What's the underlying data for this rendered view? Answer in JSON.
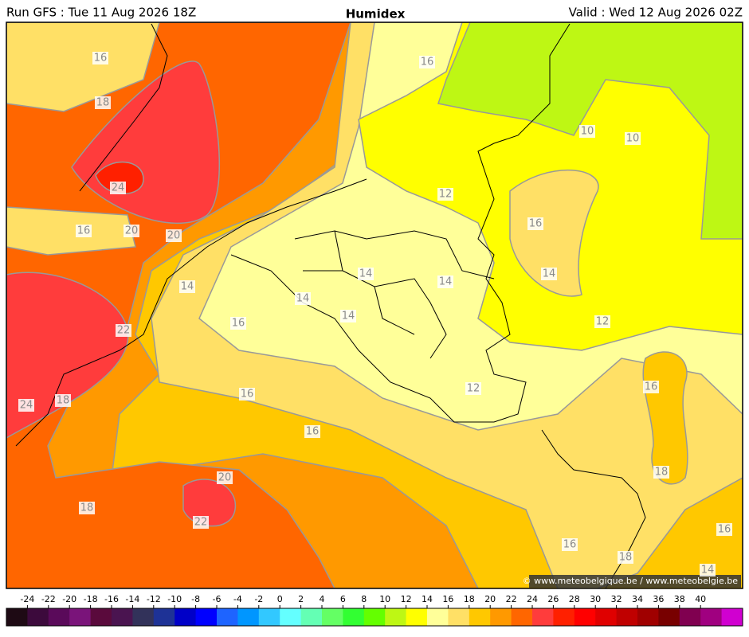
{
  "header": {
    "run": "Run GFS : Tue 11 Aug 2026 18Z",
    "title": "Humidex",
    "valid": "Valid : Wed 12 Aug 2026 02Z"
  },
  "contour_labels": [
    16,
    18,
    16,
    10,
    10,
    24,
    12,
    16,
    16,
    20,
    20,
    14,
    14,
    14,
    14,
    14,
    14,
    16,
    12,
    22,
    16,
    12,
    16,
    24,
    18,
    16,
    18,
    20,
    18,
    22,
    16,
    16,
    18,
    14
  ],
  "copyright": "© www.meteobelgique.be / www.meteobelgie.be",
  "colorbar": {
    "ticks": [
      -24,
      -22,
      -20,
      -18,
      -16,
      -14,
      -12,
      -10,
      -8,
      -6,
      -4,
      -2,
      0,
      2,
      4,
      6,
      8,
      10,
      12,
      14,
      16,
      18,
      20,
      22,
      24,
      26,
      28,
      30,
      32,
      34,
      36,
      38,
      40
    ],
    "colors": [
      "#1e0a14",
      "#3c0a3c",
      "#5a0a5a",
      "#7a147a",
      "#5a0a3c",
      "#4a1450",
      "#32325a",
      "#1e3296",
      "#0000c8",
      "#0000ff",
      "#1e64ff",
      "#0096ff",
      "#32c8ff",
      "#64ffff",
      "#64ffb4",
      "#64ff64",
      "#32ff32",
      "#64ff00",
      "#bef714",
      "#ffff00",
      "#ffff99",
      "#ffe066",
      "#ffc800",
      "#ff9900",
      "#ff6600",
      "#ff3c3c",
      "#ff2000",
      "#ff0000",
      "#e00000",
      "#c00000",
      "#a00000",
      "#780000",
      "#800050",
      "#a00080",
      "#d000d0"
    ]
  }
}
